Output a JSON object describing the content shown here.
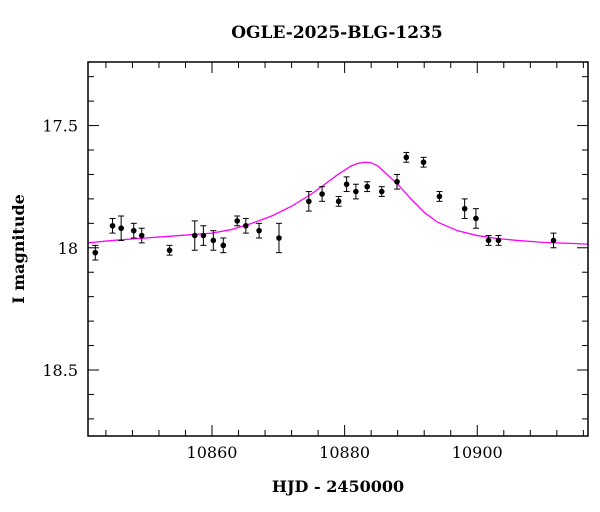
{
  "chart_data": {
    "type": "scatter",
    "title": "OGLE-2025-BLG-1235",
    "xlabel": "HJD - 2450000",
    "ylabel": "I magnitude",
    "xlim": [
      10841.3,
      10916.7
    ],
    "ylim": [
      18.77,
      17.24
    ],
    "y_inverted": true,
    "x_ticks": [
      10860,
      10880,
      10900
    ],
    "y_ticks": [
      17.5,
      18,
      18.5
    ],
    "x_minor_step": 4,
    "y_minor_step": 0.1,
    "grid": false,
    "series": [
      {
        "kind": "points_with_errorbars",
        "color": "#000000",
        "points": [
          {
            "x": 10842.4,
            "y": 18.02,
            "err": 0.03
          },
          {
            "x": 10845.0,
            "y": 17.91,
            "err": 0.03
          },
          {
            "x": 10846.3,
            "y": 17.92,
            "err": 0.05
          },
          {
            "x": 10848.2,
            "y": 17.93,
            "err": 0.03
          },
          {
            "x": 10849.4,
            "y": 17.95,
            "err": 0.03
          },
          {
            "x": 10853.6,
            "y": 18.01,
            "err": 0.02
          },
          {
            "x": 10857.4,
            "y": 17.95,
            "err": 0.06
          },
          {
            "x": 10858.7,
            "y": 17.95,
            "err": 0.04
          },
          {
            "x": 10860.2,
            "y": 17.97,
            "err": 0.04
          },
          {
            "x": 10861.7,
            "y": 17.99,
            "err": 0.03
          },
          {
            "x": 10863.8,
            "y": 17.89,
            "err": 0.02
          },
          {
            "x": 10865.1,
            "y": 17.91,
            "err": 0.03
          },
          {
            "x": 10867.1,
            "y": 17.93,
            "err": 0.03
          },
          {
            "x": 10870.1,
            "y": 17.96,
            "err": 0.06
          },
          {
            "x": 10874.6,
            "y": 17.81,
            "err": 0.04
          },
          {
            "x": 10876.6,
            "y": 17.78,
            "err": 0.03
          },
          {
            "x": 10879.1,
            "y": 17.81,
            "err": 0.02
          },
          {
            "x": 10880.3,
            "y": 17.74,
            "err": 0.03
          },
          {
            "x": 10881.7,
            "y": 17.77,
            "err": 0.03
          },
          {
            "x": 10883.4,
            "y": 17.75,
            "err": 0.02
          },
          {
            "x": 10885.6,
            "y": 17.77,
            "err": 0.02
          },
          {
            "x": 10887.9,
            "y": 17.73,
            "err": 0.03
          },
          {
            "x": 10889.3,
            "y": 17.63,
            "err": 0.02
          },
          {
            "x": 10891.9,
            "y": 17.65,
            "err": 0.02
          },
          {
            "x": 10894.3,
            "y": 17.79,
            "err": 0.02
          },
          {
            "x": 10898.1,
            "y": 17.84,
            "err": 0.04
          },
          {
            "x": 10899.8,
            "y": 17.88,
            "err": 0.04
          },
          {
            "x": 10901.7,
            "y": 17.97,
            "err": 0.02
          },
          {
            "x": 10903.2,
            "y": 17.97,
            "err": 0.02
          },
          {
            "x": 10911.5,
            "y": 17.97,
            "err": 0.03
          }
        ]
      },
      {
        "kind": "model_curve",
        "color": "#ff00ff",
        "x": [
          10841.3,
          10845,
          10850,
          10855,
          10860,
          10863,
          10866,
          10869,
          10872,
          10875,
          10877,
          10879,
          10881,
          10882,
          10883,
          10884,
          10885,
          10886,
          10888,
          10890,
          10892,
          10894,
          10897,
          10900,
          10903,
          10906,
          10910,
          10914,
          10916.7
        ],
        "y": [
          17.98,
          17.97,
          17.96,
          17.95,
          17.94,
          17.925,
          17.9,
          17.87,
          17.83,
          17.78,
          17.74,
          17.7,
          17.665,
          17.655,
          17.65,
          17.652,
          17.665,
          17.69,
          17.74,
          17.8,
          17.855,
          17.895,
          17.93,
          17.95,
          17.962,
          17.97,
          17.978,
          17.982,
          17.985
        ]
      }
    ]
  }
}
